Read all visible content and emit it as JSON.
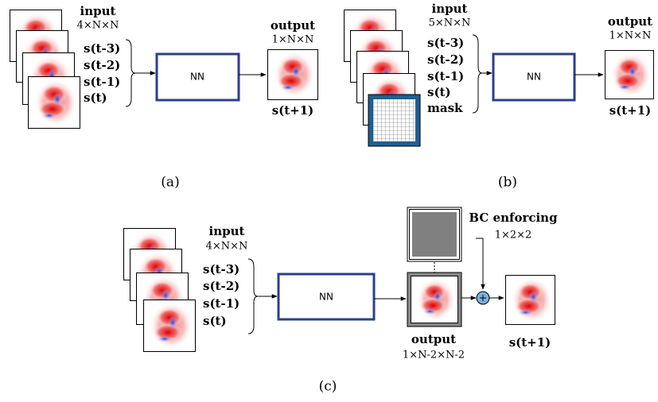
{
  "panels": [
    {
      "label": "(a)",
      "input": {
        "title": "input",
        "shape": "4×N×N"
      },
      "inputs": [
        "s(t-3)",
        "s(t-2)",
        "s(t-1)",
        "s(t)"
      ],
      "network": "NN",
      "output": {
        "title": "output",
        "shape": "1×N×N"
      },
      "result": "s(t+1)"
    },
    {
      "label": "(b)",
      "input": {
        "title": "input",
        "shape": "5×N×N"
      },
      "inputs": [
        "s(t-3)",
        "s(t-2)",
        "s(t-1)",
        "s(t)",
        "mask"
      ],
      "network": "NN",
      "output": {
        "title": "output",
        "shape": "1×N×N"
      },
      "result": "s(t+1)"
    },
    {
      "label": "(c)",
      "input": {
        "title": "input",
        "shape": "4×N×N"
      },
      "inputs": [
        "s(t-3)",
        "s(t-2)",
        "s(t-1)",
        "s(t)"
      ],
      "network": "NN",
      "bc": {
        "title": "BC enforcing",
        "shape": "1×2×2"
      },
      "output": {
        "title": "output",
        "shape": "1×N-2×N-2"
      },
      "result": "s(t+1)"
    }
  ]
}
